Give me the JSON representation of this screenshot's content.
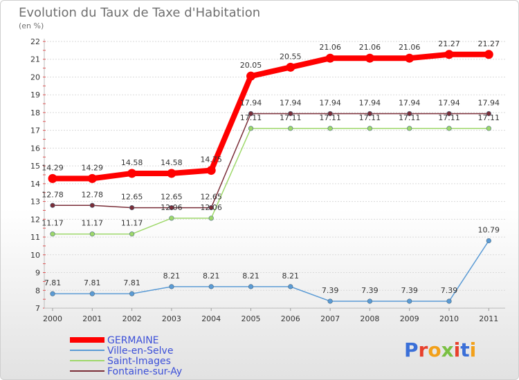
{
  "chart_data": {
    "type": "line",
    "title": "Evolution du Taux de Taxe d'Habitation",
    "subtitle": "(en %)",
    "x": [
      "2000",
      "2001",
      "2002",
      "2003",
      "2004",
      "2005",
      "2006",
      "2007",
      "2008",
      "2009",
      "2010",
      "2011"
    ],
    "ylim": [
      7,
      22
    ],
    "yticks": [
      7,
      8,
      9,
      10,
      11,
      12,
      13,
      14,
      15,
      16,
      17,
      18,
      19,
      20,
      21,
      22
    ],
    "grid": "horizontal",
    "legend_position": "bottom-left",
    "series": [
      {
        "name": "GERMAINE",
        "color": "#ff0000",
        "values": [
          14.29,
          14.29,
          14.58,
          14.58,
          14.75,
          20.05,
          20.55,
          21.06,
          21.06,
          21.06,
          21.27,
          21.27
        ],
        "labels": [
          "14.29",
          "14.29",
          "14.58",
          "14.58",
          "14.75",
          "20.05",
          "20.55",
          "21.06",
          "21.06",
          "21.06",
          "21.27",
          "21.27"
        ]
      },
      {
        "name": "Ville-en-Selve",
        "color": "#5b9bd5",
        "values": [
          7.81,
          7.81,
          7.81,
          8.21,
          8.21,
          8.21,
          8.21,
          7.39,
          7.39,
          7.39,
          7.39,
          10.79
        ],
        "labels": [
          "7.81",
          "7.81",
          "7.81",
          "8.21",
          "8.21",
          "8.21",
          "8.21",
          "7.39",
          "7.39",
          "7.39",
          "7.39",
          "10.79"
        ]
      },
      {
        "name": "Saint-Images",
        "color": "#9ed86a",
        "values": [
          11.17,
          11.17,
          11.17,
          12.06,
          12.06,
          17.11,
          17.11,
          17.11,
          17.11,
          17.11,
          17.11,
          17.11
        ],
        "labels": [
          "11.17",
          "11.17",
          "11.17",
          "12.06",
          "12.06",
          "17.11",
          "17.11",
          "17.11",
          "17.11",
          "17.11",
          "17.11",
          "17.11"
        ]
      },
      {
        "name": "Fontaine-sur-Ay",
        "color": "#7a2e38",
        "values": [
          12.78,
          12.78,
          12.65,
          12.65,
          12.65,
          17.94,
          17.94,
          17.94,
          17.94,
          17.94,
          17.94,
          17.94
        ],
        "labels": [
          "12.78",
          "12.78",
          "12.65",
          "12.65",
          "12.65",
          "17.94",
          "17.94",
          "17.94",
          "17.94",
          "17.94",
          "17.94",
          "17.94"
        ]
      }
    ]
  },
  "brand": {
    "text": "Proxiti"
  }
}
